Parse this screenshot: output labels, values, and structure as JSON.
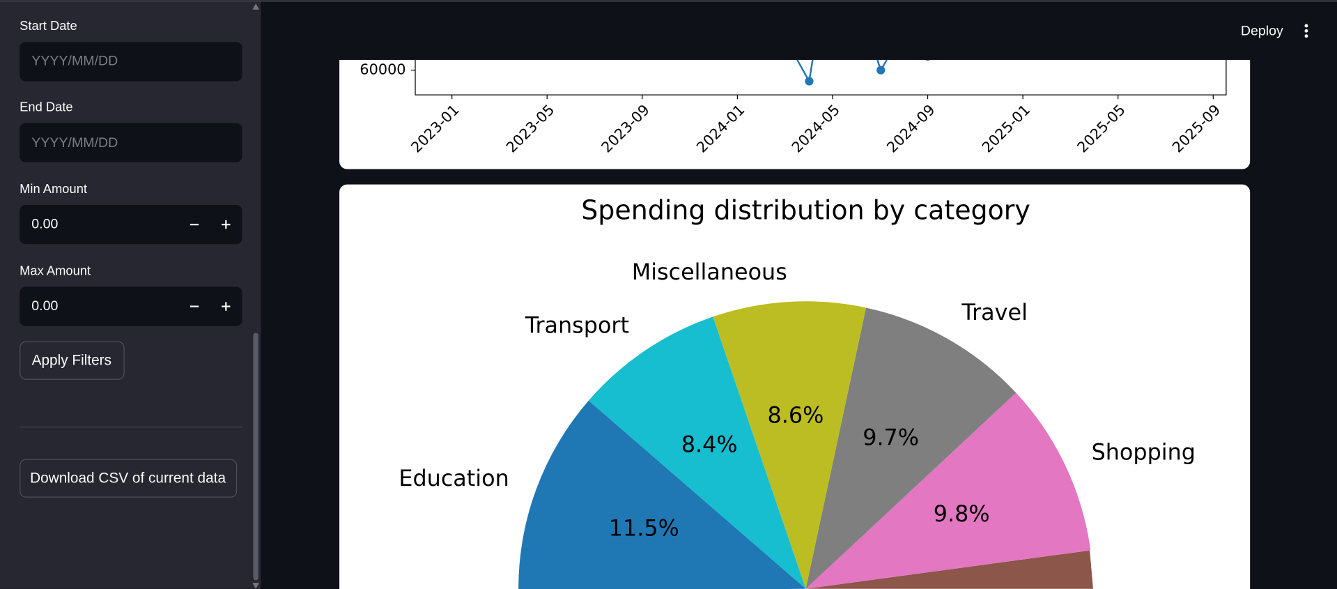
{
  "sidebar": {
    "start_date": {
      "label": "Start Date",
      "placeholder": "YYYY/MM/DD"
    },
    "end_date": {
      "label": "End Date",
      "placeholder": "YYYY/MM/DD"
    },
    "min_amount": {
      "label": "Min Amount",
      "value": "0.00"
    },
    "max_amount": {
      "label": "Max Amount",
      "value": "0.00"
    },
    "apply_button": "Apply Filters",
    "download_button": "Download CSV of current data"
  },
  "header": {
    "deploy": "Deploy"
  },
  "chart_data": [
    {
      "type": "line",
      "yticks": [
        60000
      ],
      "xticks": [
        "2023-01",
        "2023-05",
        "2023-09",
        "2024-01",
        "2024-05",
        "2024-09",
        "2025-01",
        "2025-05",
        "2025-09"
      ]
    },
    {
      "type": "pie",
      "title": "Spending distribution by category",
      "categories": [
        "Shopping",
        "Travel",
        "Miscellaneous",
        "Transport",
        "Education"
      ],
      "values": [
        9.8,
        9.7,
        8.6,
        8.4,
        11.5
      ],
      "value_labels": [
        "9.8%",
        "9.7%",
        "8.6%",
        "8.4%",
        "11.5%"
      ],
      "colors": [
        "#e377c2",
        "#7f7f7f",
        "#bcbd22",
        "#17becf",
        "#1f77b4"
      ]
    }
  ]
}
